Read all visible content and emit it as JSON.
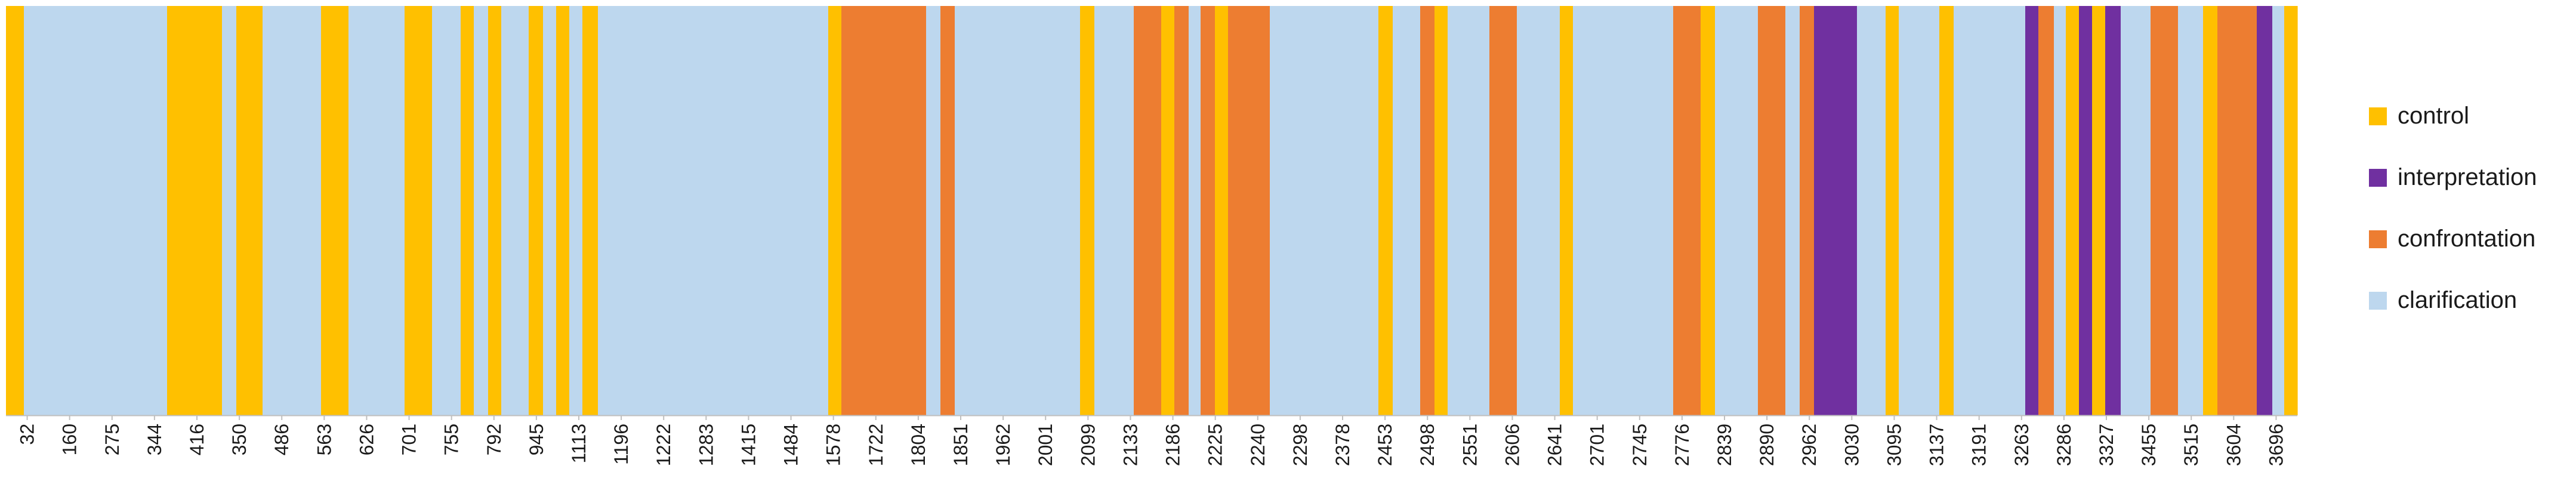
{
  "chart_data": {
    "type": "bar",
    "title": "",
    "xlabel": "",
    "ylabel": "",
    "legend_position": "right",
    "grid": false,
    "categories_colors": {
      "control": "#FFC000",
      "interpretation": "#7030A0",
      "confrontation": "#ED7D31",
      "clarification": "#BDD7EE"
    },
    "legend": [
      {
        "key": "control",
        "label": "control"
      },
      {
        "key": "interpretation",
        "label": "interpretation"
      },
      {
        "key": "confrontation",
        "label": "confrontation"
      },
      {
        "key": "clarification",
        "label": "clarification"
      }
    ],
    "x_ticks": [
      "32",
      "160",
      "275",
      "344",
      "416",
      "350",
      "486",
      "563",
      "626",
      "701",
      "755",
      "792",
      "945",
      "1113",
      "1196",
      "1222",
      "1283",
      "1415",
      "1484",
      "1578",
      "1722",
      "1804",
      "1851",
      "1962",
      "2001",
      "2099",
      "2133",
      "2186",
      "2225",
      "2240",
      "2298",
      "2378",
      "2453",
      "2498",
      "2551",
      "2606",
      "2641",
      "2701",
      "2745",
      "2776",
      "2839",
      "2890",
      "2962",
      "3030",
      "3095",
      "3137",
      "3191",
      "3263",
      "3286",
      "3327",
      "3455",
      "3515",
      "3604",
      "3696"
    ],
    "x_range": [
      0,
      3840
    ],
    "segments": [
      {
        "start": 0,
        "end": 30,
        "category": "control"
      },
      {
        "start": 30,
        "end": 270,
        "category": "clarification"
      },
      {
        "start": 270,
        "end": 362,
        "category": "control"
      },
      {
        "start": 362,
        "end": 386,
        "category": "clarification"
      },
      {
        "start": 386,
        "end": 430,
        "category": "control"
      },
      {
        "start": 430,
        "end": 528,
        "category": "clarification"
      },
      {
        "start": 528,
        "end": 574,
        "category": "control"
      },
      {
        "start": 574,
        "end": 668,
        "category": "clarification"
      },
      {
        "start": 668,
        "end": 714,
        "category": "control"
      },
      {
        "start": 714,
        "end": 762,
        "category": "clarification"
      },
      {
        "start": 762,
        "end": 784,
        "category": "control"
      },
      {
        "start": 784,
        "end": 808,
        "category": "clarification"
      },
      {
        "start": 808,
        "end": 830,
        "category": "control"
      },
      {
        "start": 830,
        "end": 876,
        "category": "clarification"
      },
      {
        "start": 876,
        "end": 900,
        "category": "control"
      },
      {
        "start": 900,
        "end": 922,
        "category": "clarification"
      },
      {
        "start": 922,
        "end": 944,
        "category": "control"
      },
      {
        "start": 944,
        "end": 966,
        "category": "clarification"
      },
      {
        "start": 966,
        "end": 992,
        "category": "control"
      },
      {
        "start": 992,
        "end": 1378,
        "category": "clarification"
      },
      {
        "start": 1378,
        "end": 1400,
        "category": "control"
      },
      {
        "start": 1400,
        "end": 1542,
        "category": "confrontation"
      },
      {
        "start": 1542,
        "end": 1566,
        "category": "clarification"
      },
      {
        "start": 1566,
        "end": 1590,
        "category": "confrontation"
      },
      {
        "start": 1590,
        "end": 1800,
        "category": "clarification"
      },
      {
        "start": 1800,
        "end": 1824,
        "category": "control"
      },
      {
        "start": 1824,
        "end": 1890,
        "category": "clarification"
      },
      {
        "start": 1890,
        "end": 1936,
        "category": "confrontation"
      },
      {
        "start": 1936,
        "end": 1958,
        "category": "control"
      },
      {
        "start": 1958,
        "end": 1982,
        "category": "confrontation"
      },
      {
        "start": 1982,
        "end": 2002,
        "category": "clarification"
      },
      {
        "start": 2002,
        "end": 2026,
        "category": "confrontation"
      },
      {
        "start": 2026,
        "end": 2048,
        "category": "control"
      },
      {
        "start": 2048,
        "end": 2118,
        "category": "confrontation"
      },
      {
        "start": 2118,
        "end": 2300,
        "category": "clarification"
      },
      {
        "start": 2300,
        "end": 2324,
        "category": "control"
      },
      {
        "start": 2324,
        "end": 2370,
        "category": "clarification"
      },
      {
        "start": 2370,
        "end": 2394,
        "category": "confrontation"
      },
      {
        "start": 2394,
        "end": 2416,
        "category": "control"
      },
      {
        "start": 2416,
        "end": 2486,
        "category": "clarification"
      },
      {
        "start": 2486,
        "end": 2532,
        "category": "confrontation"
      },
      {
        "start": 2532,
        "end": 2604,
        "category": "clarification"
      },
      {
        "start": 2604,
        "end": 2626,
        "category": "control"
      },
      {
        "start": 2626,
        "end": 2794,
        "category": "clarification"
      },
      {
        "start": 2794,
        "end": 2840,
        "category": "confrontation"
      },
      {
        "start": 2840,
        "end": 2864,
        "category": "control"
      },
      {
        "start": 2864,
        "end": 2936,
        "category": "clarification"
      },
      {
        "start": 2936,
        "end": 2982,
        "category": "confrontation"
      },
      {
        "start": 2982,
        "end": 3006,
        "category": "clarification"
      },
      {
        "start": 3006,
        "end": 3030,
        "category": "confrontation"
      },
      {
        "start": 3030,
        "end": 3102,
        "category": "interpretation"
      },
      {
        "start": 3102,
        "end": 3150,
        "category": "clarification"
      },
      {
        "start": 3150,
        "end": 3172,
        "category": "control"
      },
      {
        "start": 3172,
        "end": 3240,
        "category": "clarification"
      },
      {
        "start": 3240,
        "end": 3264,
        "category": "control"
      },
      {
        "start": 3264,
        "end": 3384,
        "category": "clarification"
      },
      {
        "start": 3384,
        "end": 3406,
        "category": "interpretation"
      },
      {
        "start": 3406,
        "end": 3432,
        "category": "confrontation"
      },
      {
        "start": 3432,
        "end": 3452,
        "category": "clarification"
      },
      {
        "start": 3452,
        "end": 3474,
        "category": "control"
      },
      {
        "start": 3474,
        "end": 3496,
        "category": "interpretation"
      },
      {
        "start": 3496,
        "end": 3518,
        "category": "control"
      },
      {
        "start": 3518,
        "end": 3544,
        "category": "interpretation"
      },
      {
        "start": 3544,
        "end": 3594,
        "category": "clarification"
      },
      {
        "start": 3594,
        "end": 3640,
        "category": "confrontation"
      },
      {
        "start": 3640,
        "end": 3682,
        "category": "clarification"
      },
      {
        "start": 3682,
        "end": 3706,
        "category": "control"
      },
      {
        "start": 3706,
        "end": 3772,
        "category": "confrontation"
      },
      {
        "start": 3772,
        "end": 3798,
        "category": "interpretation"
      },
      {
        "start": 3798,
        "end": 3818,
        "category": "clarification"
      },
      {
        "start": 3818,
        "end": 3840,
        "category": "control"
      }
    ]
  }
}
